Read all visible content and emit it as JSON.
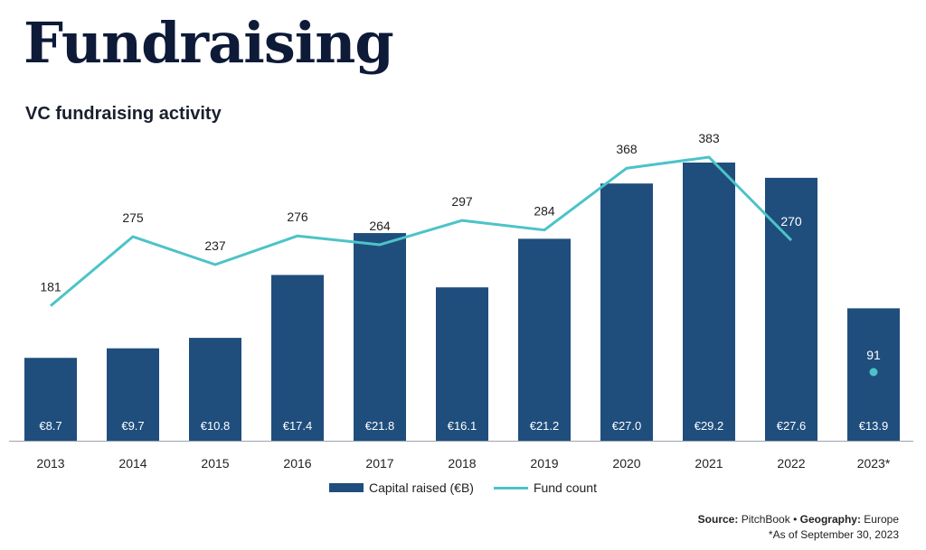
{
  "header": {
    "title": "Fundraising",
    "subtitle": "VC fundraising activity"
  },
  "chart_data": {
    "type": "bar",
    "title": "VC fundraising activity",
    "categories": [
      "2013",
      "2014",
      "2015",
      "2016",
      "2017",
      "2018",
      "2019",
      "2020",
      "2021",
      "2022",
      "2023*"
    ],
    "series": [
      {
        "name": "Capital raised (€B)",
        "type": "bar",
        "values": [
          8.7,
          9.7,
          10.8,
          17.4,
          21.8,
          16.1,
          21.2,
          27.0,
          29.2,
          27.6,
          13.9
        ],
        "labels": [
          "€8.7",
          "€9.7",
          "€10.8",
          "€17.4",
          "€21.8",
          "€16.1",
          "€21.2",
          "€27.0",
          "€29.2",
          "€27.6",
          "€13.9"
        ]
      },
      {
        "name": "Fund count",
        "type": "line",
        "values": [
          181,
          275,
          237,
          276,
          264,
          297,
          284,
          368,
          383,
          270,
          91
        ]
      }
    ],
    "y_bar_range": [
      0,
      29.2
    ],
    "y_line_range": [
      0,
      383
    ],
    "grid": false,
    "legend": "bottom-center",
    "colors": {
      "bar": "#1f4e7d",
      "line": "#4cc3c8",
      "bar_label": "#ffffff",
      "text": "#222222"
    }
  },
  "legend": {
    "bar_label": "Capital raised (€B)",
    "line_label": "Fund count"
  },
  "source": {
    "source_label": "Source:",
    "source_value": "PitchBook",
    "separator": "•",
    "geography_label": "Geography:",
    "geography_value": "Europe",
    "note": "*As of September 30, 2023"
  }
}
